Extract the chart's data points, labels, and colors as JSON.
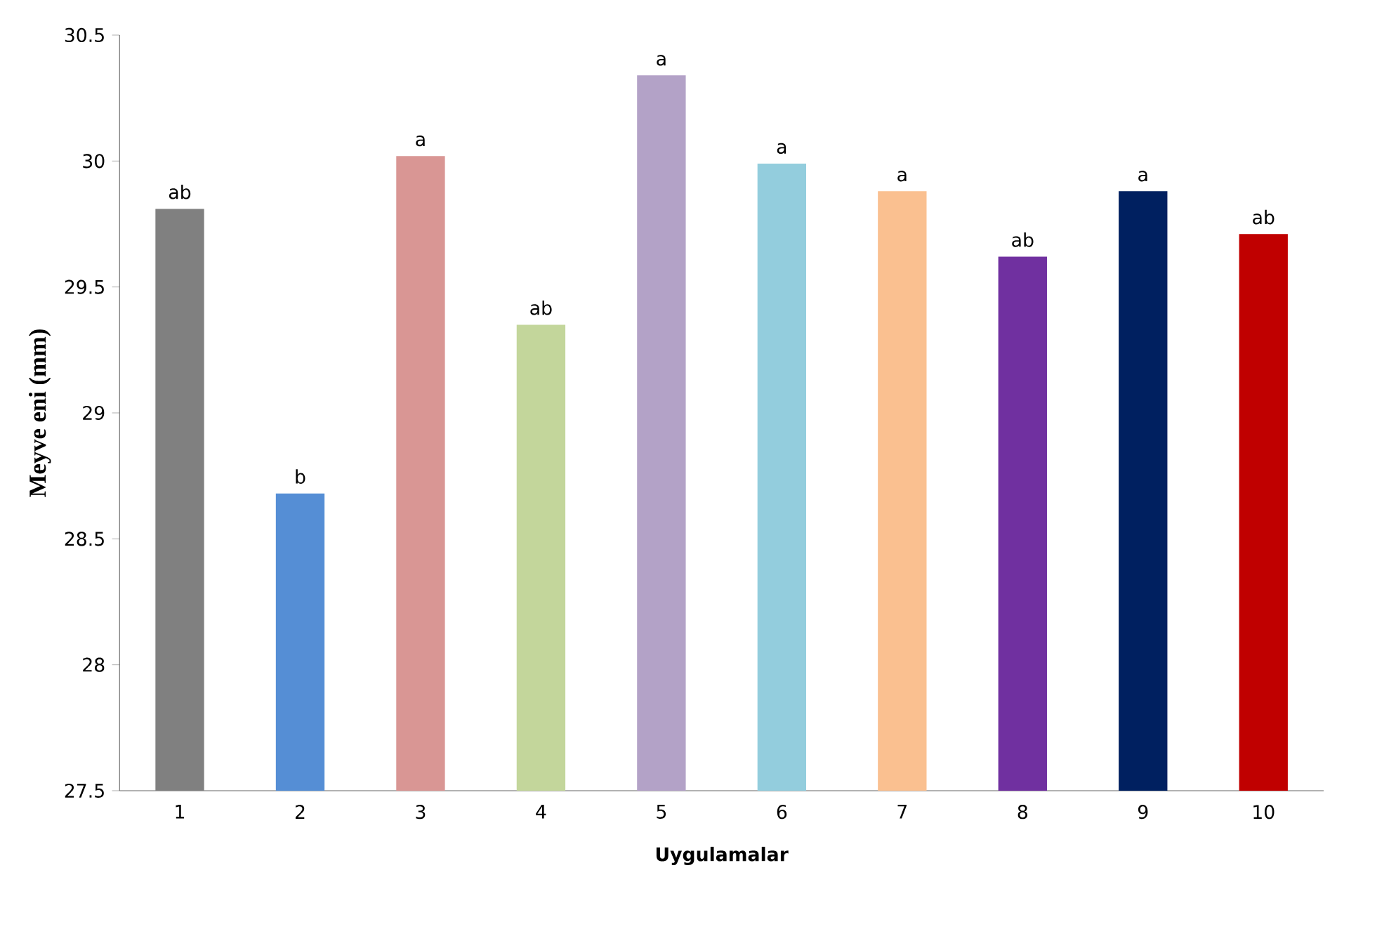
{
  "chart_data": {
    "type": "bar",
    "xlabel": "Uygulamalar",
    "ylabel": "Meyve eni (mm)",
    "categories": [
      "1",
      "2",
      "3",
      "4",
      "5",
      "6",
      "7",
      "8",
      "9",
      "10"
    ],
    "values": [
      29.81,
      28.68,
      30.02,
      29.35,
      30.34,
      29.99,
      29.88,
      29.62,
      29.88,
      29.71
    ],
    "colors": [
      "#808080",
      "#558ed5",
      "#d99694",
      "#c3d69b",
      "#b3a2c7",
      "#93cddd",
      "#fac090",
      "#7030a0",
      "#002060",
      "#c00000"
    ],
    "ylim": [
      27.5,
      30.5
    ],
    "yticks": [
      27.5,
      28,
      28.5,
      29,
      29.5,
      30,
      30.5
    ],
    "annotations": [
      {
        "text": "ab",
        "x": "1",
        "y": 29.81
      },
      {
        "text": "b",
        "x": "2",
        "y": 28.68
      },
      {
        "text": "a",
        "x": "3",
        "y": 30.02
      },
      {
        "text": "ab",
        "x": "4",
        "y": 29.35
      },
      {
        "text": "a",
        "x": "5",
        "y": 30.34
      },
      {
        "text": "a",
        "x": "6",
        "y": 29.99
      },
      {
        "text": "a",
        "x": "7",
        "y": 29.88
      },
      {
        "text": "ab",
        "x": "8",
        "y": 29.62
      },
      {
        "text": "a",
        "x": "9",
        "y": 29.88
      },
      {
        "text": "ab",
        "x": "10",
        "y": 29.71
      }
    ]
  }
}
